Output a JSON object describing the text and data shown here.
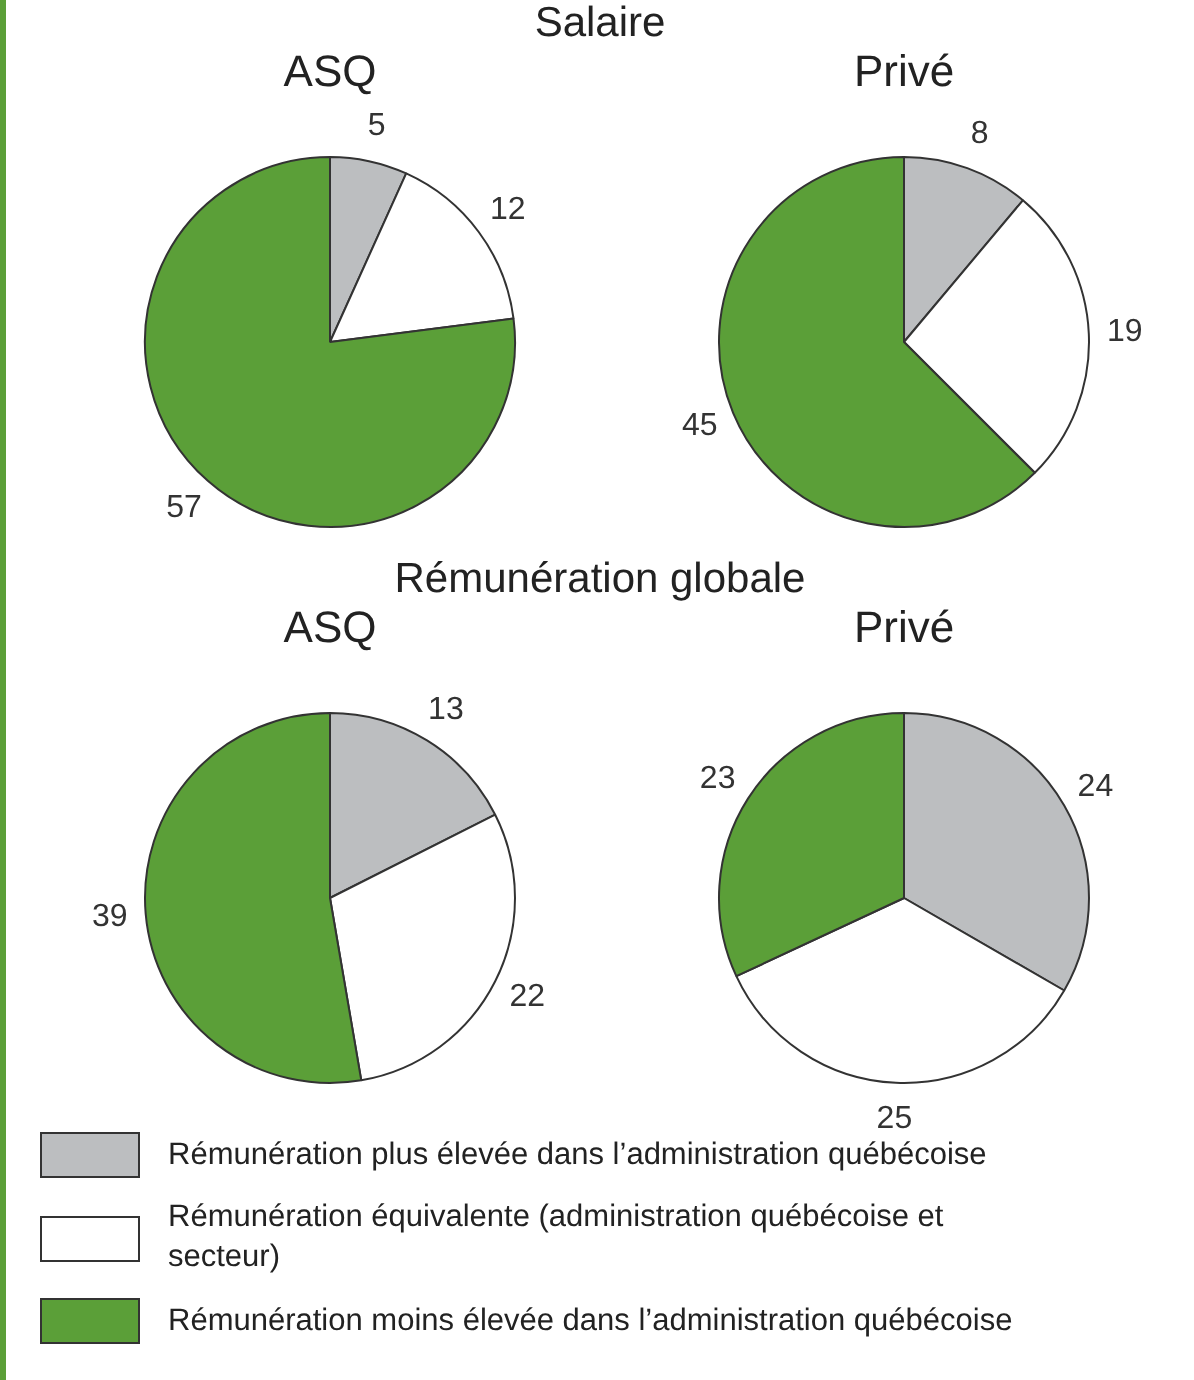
{
  "chart_data": [
    {
      "type": "pie",
      "title": "Salaire",
      "subtitle": "ASQ",
      "categories": [
        "Rémunération plus élevée dans l’administration québécoise",
        "Rémunération équivalente (administration québécoise et secteur)",
        "Rémunération moins élevée dans l’administration québécoise"
      ],
      "values": [
        5,
        12,
        57
      ],
      "colors": [
        "#bcbec0",
        "#ffffff",
        "#5b9f38"
      ],
      "data_labels": true,
      "legend": "bottom"
    },
    {
      "type": "pie",
      "subtitle": "Privé",
      "categories": [
        null,
        null,
        null
      ],
      "values": [
        8,
        19,
        45
      ],
      "colors": [
        "#bcbec0",
        "#ffffff",
        "#5b9f38"
      ],
      "data_labels": true
    },
    {
      "type": "pie",
      "title": "Rémunération globale",
      "subtitle": "ASQ",
      "categories": [
        null,
        null,
        null
      ],
      "values": [
        13,
        22,
        39
      ],
      "colors": [
        "#bcbec0",
        "#ffffff",
        "#5b9f38"
      ],
      "data_labels": true
    },
    {
      "type": "pie",
      "subtitle": "Privé",
      "categories": [
        null,
        null,
        null
      ],
      "values": [
        24,
        25,
        23
      ],
      "colors": [
        "#bcbec0",
        "#ffffff",
        "#5b9f38"
      ],
      "data_labels": true
    }
  ]
}
